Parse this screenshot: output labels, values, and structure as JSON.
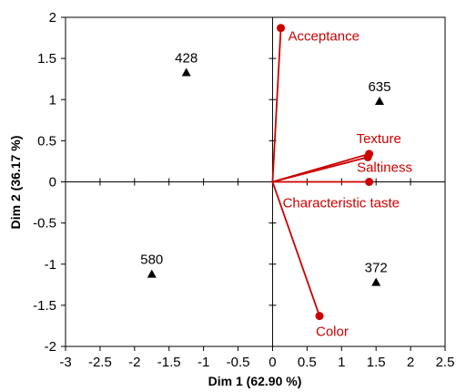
{
  "chart_data": {
    "type": "scatter",
    "title": "",
    "xlabel": "Dim 1 (62.90 %)",
    "ylabel": "Dim 2 (36.17 %)",
    "xlim": [
      -3,
      2.5
    ],
    "ylim": [
      -2,
      2
    ],
    "xticks": [
      -3,
      -2.5,
      -2,
      -1.5,
      -1,
      -0.5,
      0,
      0.5,
      1,
      1.5,
      2,
      2.5
    ],
    "yticks": [
      -2,
      -1.5,
      -1,
      -0.5,
      0,
      0.5,
      1,
      1.5,
      2
    ],
    "grid": false,
    "legend": "none",
    "colors": {
      "observations": "#000000",
      "variables": "#cc0000"
    },
    "observations": [
      {
        "label": "428",
        "x": -1.25,
        "y": 1.33
      },
      {
        "label": "635",
        "x": 1.55,
        "y": 0.98
      },
      {
        "label": "580",
        "x": -1.75,
        "y": -1.12
      },
      {
        "label": "372",
        "x": 1.5,
        "y": -1.22
      }
    ],
    "variables": [
      {
        "label": "Acceptance",
        "x": 0.12,
        "y": 1.87
      },
      {
        "label": "Texture",
        "x": 1.4,
        "y": 0.34
      },
      {
        "label": "Saltiness",
        "x": 1.38,
        "y": 0.3
      },
      {
        "label": "Characteristic taste",
        "x": 1.4,
        "y": 0.0
      },
      {
        "label": "Color",
        "x": 0.68,
        "y": -1.63
      }
    ]
  }
}
